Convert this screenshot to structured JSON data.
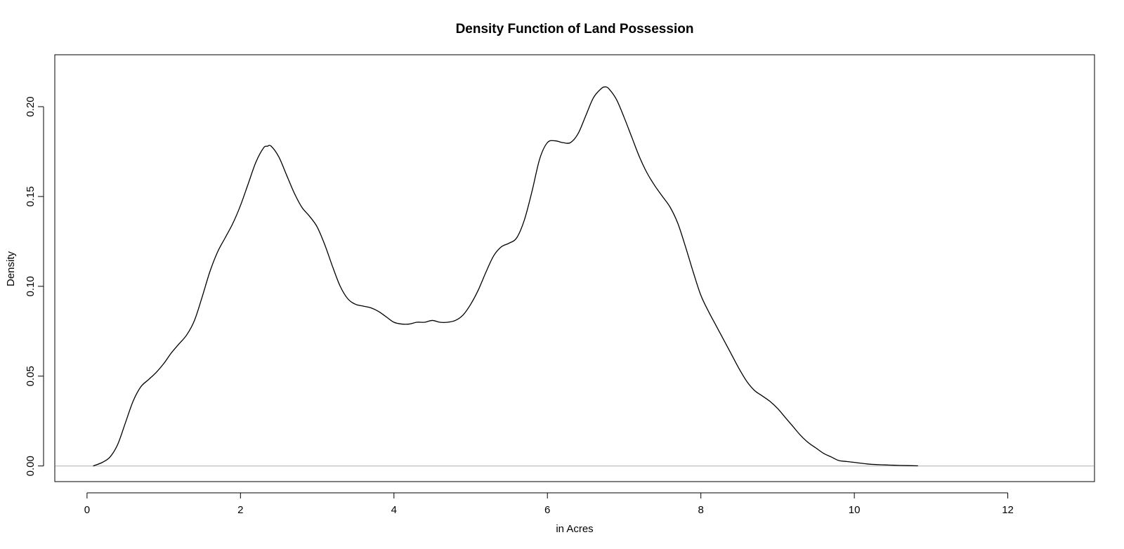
{
  "chart_data": {
    "type": "line",
    "title": "Density Function of Land Possession",
    "xlabel": "in Acres",
    "ylabel": "Density",
    "xlim": [
      -0.42,
      13.13
    ],
    "ylim": [
      -0.0087,
      0.2289
    ],
    "xticks": [
      0,
      2,
      4,
      6,
      8,
      10,
      12
    ],
    "yticks": [
      0.0,
      0.05,
      0.1,
      0.15,
      0.2
    ],
    "xtick_labels": [
      "0",
      "2",
      "4",
      "6",
      "8",
      "10",
      "12"
    ],
    "ytick_labels": [
      "0.00",
      "0.05",
      "0.10",
      "0.15",
      "0.20"
    ],
    "baseline": {
      "y": 0,
      "color": "#bebebe"
    },
    "line_color": "#000000",
    "grid": false,
    "series": [
      {
        "x": [
          0.08,
          0.2,
          0.3,
          0.4,
          0.5,
          0.6,
          0.7,
          0.8,
          0.9,
          1.0,
          1.1,
          1.2,
          1.3,
          1.4,
          1.5,
          1.6,
          1.7,
          1.8,
          1.9,
          2.0,
          2.1,
          2.2,
          2.3,
          2.35,
          2.4,
          2.5,
          2.6,
          2.7,
          2.8,
          2.9,
          3.0,
          3.1,
          3.2,
          3.3,
          3.4,
          3.5,
          3.6,
          3.7,
          3.8,
          3.9,
          4.0,
          4.1,
          4.2,
          4.3,
          4.4,
          4.5,
          4.6,
          4.7,
          4.8,
          4.9,
          5.0,
          5.1,
          5.2,
          5.3,
          5.4,
          5.5,
          5.6,
          5.7,
          5.8,
          5.9,
          6.0,
          6.1,
          6.2,
          6.3,
          6.4,
          6.5,
          6.6,
          6.7,
          6.75,
          6.8,
          6.9,
          7.0,
          7.1,
          7.2,
          7.3,
          7.4,
          7.5,
          7.6,
          7.7,
          7.8,
          7.9,
          8.0,
          8.1,
          8.2,
          8.3,
          8.4,
          8.5,
          8.6,
          8.7,
          8.8,
          8.9,
          9.0,
          9.1,
          9.2,
          9.3,
          9.4,
          9.5,
          9.6,
          9.7,
          9.8,
          9.9,
          10.0,
          10.2,
          10.4,
          10.6,
          10.83
        ],
        "y": [
          0.0,
          0.002,
          0.005,
          0.012,
          0.024,
          0.036,
          0.044,
          0.048,
          0.052,
          0.057,
          0.063,
          0.068,
          0.073,
          0.081,
          0.094,
          0.108,
          0.119,
          0.127,
          0.135,
          0.145,
          0.157,
          0.169,
          0.177,
          0.178,
          0.178,
          0.172,
          0.162,
          0.152,
          0.144,
          0.139,
          0.133,
          0.123,
          0.111,
          0.1,
          0.093,
          0.09,
          0.089,
          0.088,
          0.086,
          0.083,
          0.08,
          0.079,
          0.079,
          0.08,
          0.08,
          0.081,
          0.08,
          0.08,
          0.081,
          0.084,
          0.09,
          0.098,
          0.108,
          0.117,
          0.122,
          0.124,
          0.127,
          0.137,
          0.153,
          0.171,
          0.18,
          0.181,
          0.18,
          0.18,
          0.185,
          0.195,
          0.205,
          0.21,
          0.211,
          0.21,
          0.204,
          0.194,
          0.183,
          0.172,
          0.163,
          0.156,
          0.15,
          0.144,
          0.135,
          0.122,
          0.108,
          0.095,
          0.086,
          0.078,
          0.07,
          0.062,
          0.054,
          0.047,
          0.042,
          0.039,
          0.036,
          0.032,
          0.027,
          0.022,
          0.017,
          0.013,
          0.01,
          0.007,
          0.005,
          0.003,
          0.0025,
          0.002,
          0.001,
          0.0006,
          0.0003,
          0.0001
        ]
      }
    ]
  }
}
